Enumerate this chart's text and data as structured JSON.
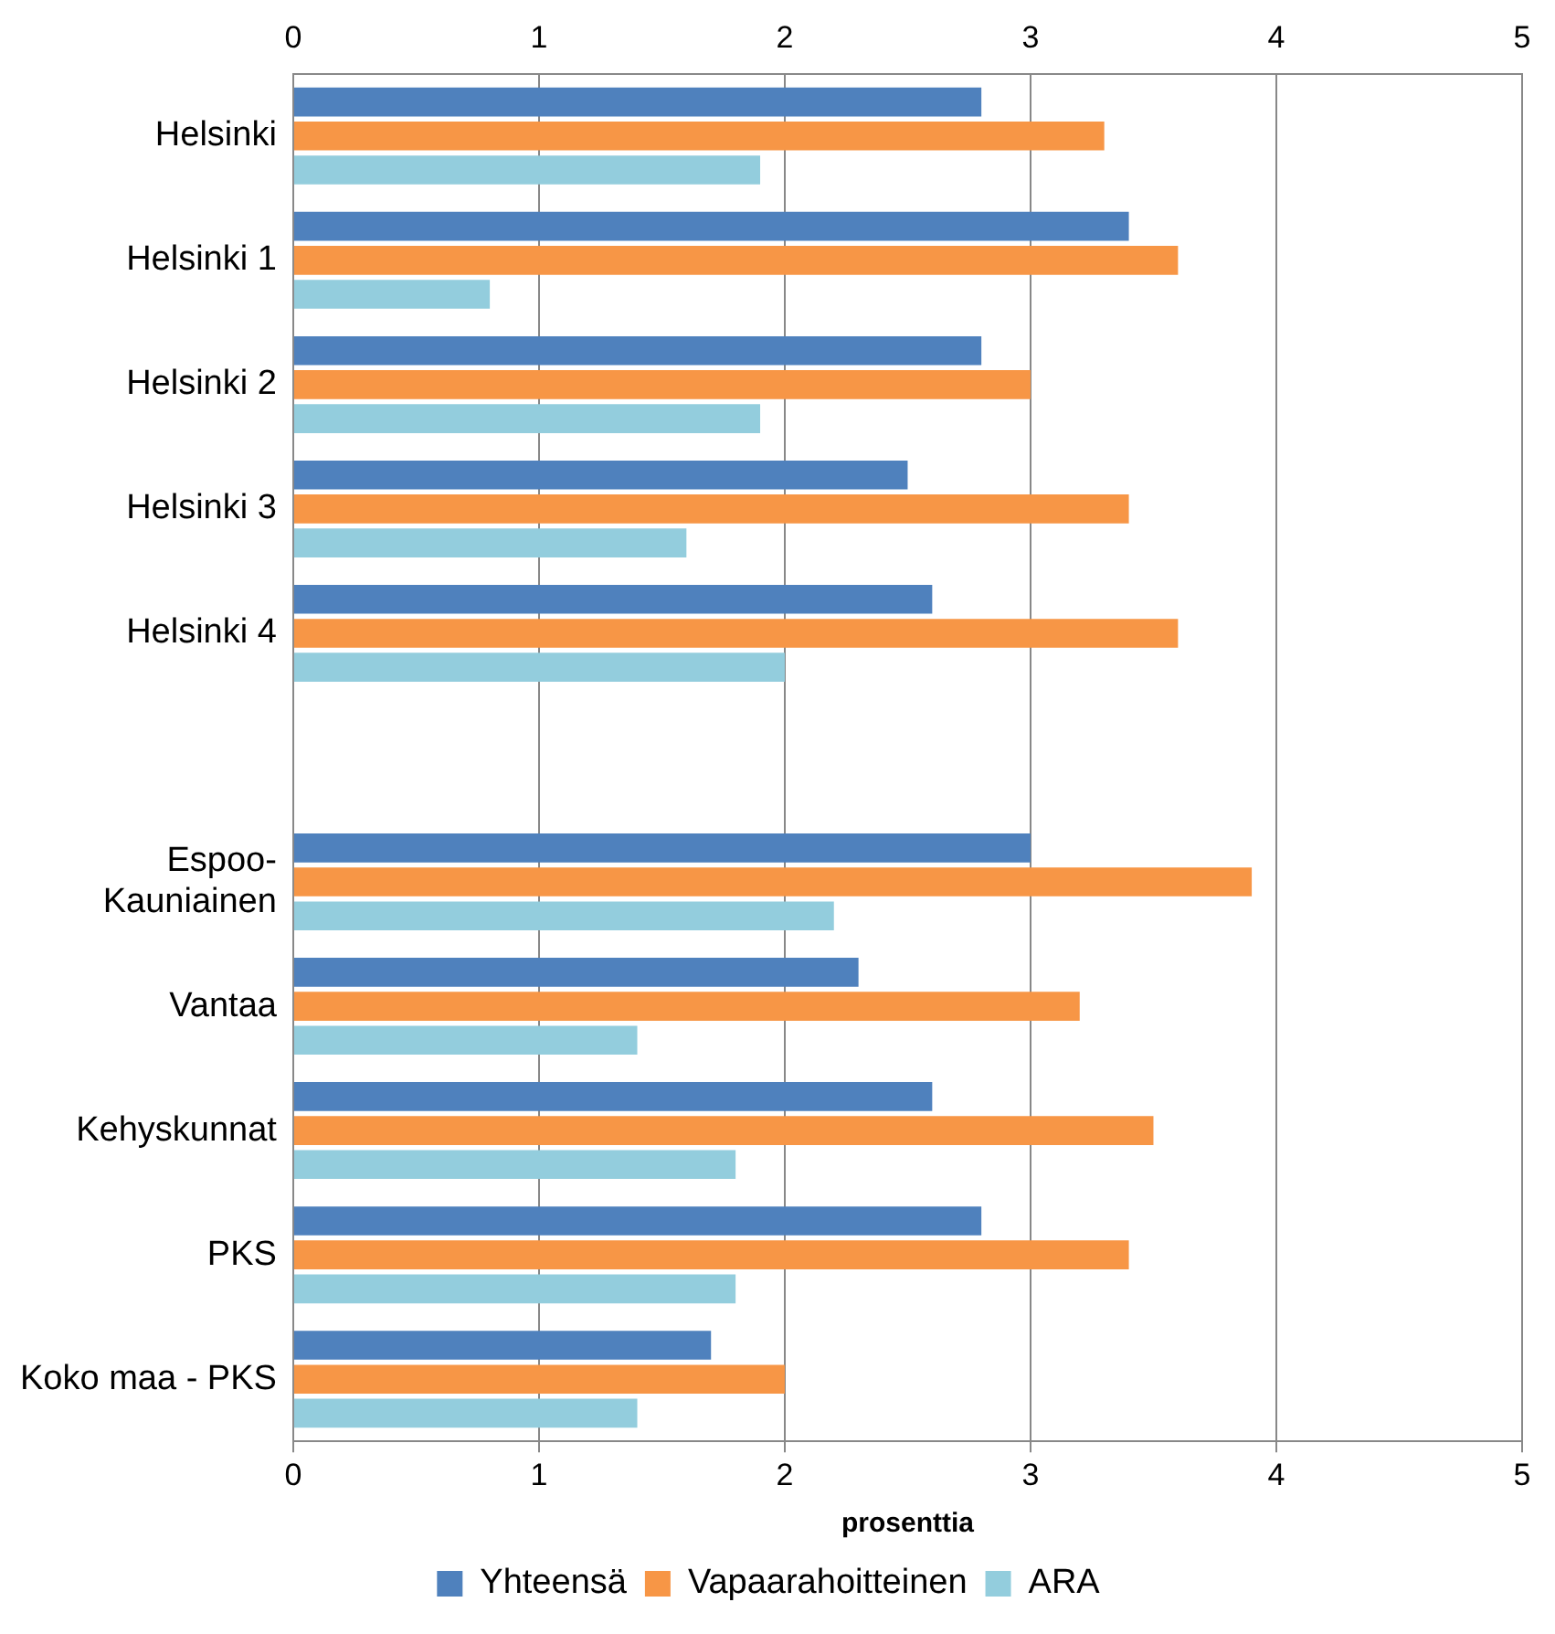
{
  "chart_data": {
    "type": "bar",
    "orientation": "horizontal",
    "xlabel": "prosenttia",
    "categories": [
      "Helsinki",
      "Helsinki 1",
      "Helsinki 2",
      "Helsinki 3",
      "Helsinki 4",
      null,
      "Espoo-Kauniainen",
      "Vantaa",
      "Kehyskunnat",
      "PKS",
      "Koko maa - PKS"
    ],
    "series": [
      {
        "name": "Yhteensä",
        "color": "#4f81bd",
        "values": [
          2.8,
          3.4,
          2.8,
          2.5,
          2.6,
          null,
          3.0,
          2.3,
          2.6,
          2.8,
          1.7
        ]
      },
      {
        "name": "Vapaarahoitteinen",
        "color": "#f79646",
        "values": [
          3.3,
          3.6,
          3.0,
          3.4,
          3.6,
          null,
          3.9,
          3.2,
          3.5,
          3.4,
          2.0
        ]
      },
      {
        "name": "ARA",
        "color": "#93cddd",
        "values": [
          1.9,
          0.8,
          1.9,
          1.6,
          2.0,
          null,
          2.2,
          1.4,
          1.8,
          1.8,
          1.4
        ]
      }
    ],
    "xlim": [
      0,
      5
    ],
    "xticks": [
      0,
      1,
      2,
      3,
      4,
      5
    ],
    "x2lim": [
      0,
      5
    ],
    "x2ticks": [
      0,
      1,
      2,
      3,
      4,
      5
    ],
    "grid": "x",
    "legend": "bottom"
  }
}
